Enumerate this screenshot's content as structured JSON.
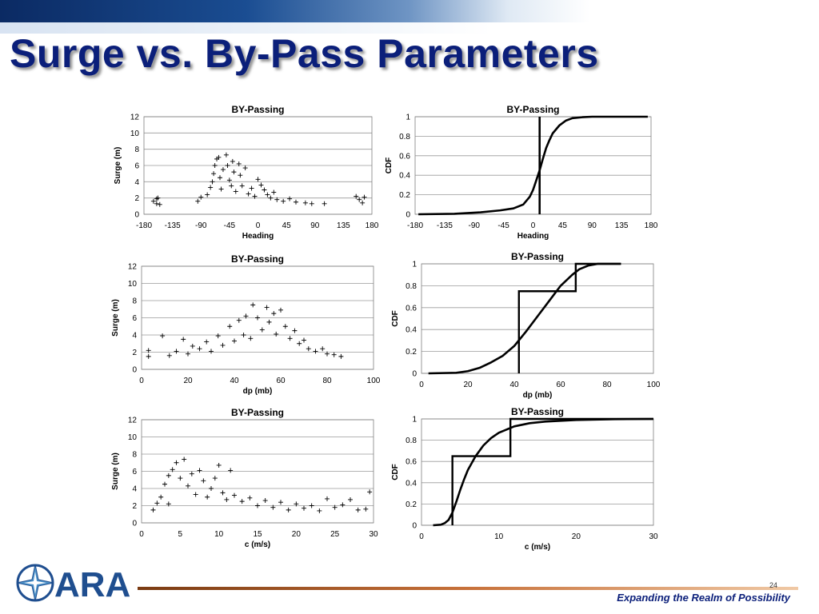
{
  "slide": {
    "title": "Surge vs. By-Pass Parameters",
    "page_number": "24",
    "tagline": "Expanding the Realm of Possibility",
    "logo_text": "ARA"
  },
  "colors": {
    "title": "#0b1f7a",
    "tagline": "#0b1f7a",
    "footer_line": "#c7713a",
    "chart_line": "#000000"
  },
  "chart_data": [
    {
      "id": "heading_scatter",
      "type": "scatter",
      "title": "BY-Passing",
      "xlabel": "Heading",
      "ylabel": "Surge (m)",
      "xlim": [
        -180,
        180
      ],
      "ylim": [
        0,
        12
      ],
      "xticks": [
        -180,
        -135,
        -90,
        -45,
        0,
        45,
        90,
        135,
        180
      ],
      "yticks": [
        0,
        2,
        4,
        6,
        8,
        10,
        12
      ],
      "grid": "horizontal",
      "marker": "+",
      "points": [
        [
          -165,
          1.6
        ],
        [
          -160,
          1.9
        ],
        [
          -158,
          2.0
        ],
        [
          -155,
          1.2
        ],
        [
          -160,
          1.3
        ],
        [
          -95,
          1.6
        ],
        [
          -90,
          2.1
        ],
        [
          -80,
          2.4
        ],
        [
          -75,
          3.3
        ],
        [
          -72,
          4.0
        ],
        [
          -70,
          5.0
        ],
        [
          -68,
          6.0
        ],
        [
          -65,
          6.8
        ],
        [
          -62,
          7.0
        ],
        [
          -60,
          4.5
        ],
        [
          -58,
          3.1
        ],
        [
          -55,
          5.5
        ],
        [
          -50,
          7.3
        ],
        [
          -48,
          6.0
        ],
        [
          -45,
          4.2
        ],
        [
          -42,
          3.5
        ],
        [
          -40,
          6.5
        ],
        [
          -38,
          5.2
        ],
        [
          -35,
          2.8
        ],
        [
          -30,
          6.2
        ],
        [
          -28,
          4.8
        ],
        [
          -25,
          3.5
        ],
        [
          -20,
          5.7
        ],
        [
          -15,
          2.5
        ],
        [
          -10,
          3.2
        ],
        [
          -5,
          2.2
        ],
        [
          0,
          4.3
        ],
        [
          5,
          3.6
        ],
        [
          10,
          3.0
        ],
        [
          15,
          2.4
        ],
        [
          20,
          2.0
        ],
        [
          25,
          2.7
        ],
        [
          30,
          1.8
        ],
        [
          40,
          1.6
        ],
        [
          50,
          1.9
        ],
        [
          60,
          1.5
        ],
        [
          75,
          1.4
        ],
        [
          85,
          1.3
        ],
        [
          105,
          1.3
        ],
        [
          155,
          2.2
        ],
        [
          160,
          1.8
        ],
        [
          165,
          1.4
        ],
        [
          168,
          2.1
        ]
      ]
    },
    {
      "id": "heading_cdf",
      "type": "line",
      "title": "BY-Passing",
      "xlabel": "Heading",
      "ylabel": "CDF",
      "xlim": [
        -180,
        180
      ],
      "ylim": [
        0,
        1
      ],
      "xticks": [
        -180,
        -135,
        -90,
        -45,
        0,
        45,
        90,
        135,
        180
      ],
      "yticks": [
        0,
        0.2,
        0.4,
        0.6,
        0.8,
        1
      ],
      "grid": "horizontal",
      "x": [
        -175,
        -120,
        -80,
        -50,
        -30,
        -15,
        -5,
        0,
        5,
        10,
        15,
        20,
        25,
        30,
        40,
        50,
        60,
        75,
        90,
        120,
        175
      ],
      "y": [
        0,
        0.005,
        0.02,
        0.04,
        0.06,
        0.1,
        0.18,
        0.25,
        0.35,
        0.45,
        0.57,
        0.68,
        0.76,
        0.83,
        0.91,
        0.96,
        0.985,
        0.995,
        1,
        1,
        1
      ],
      "vlines": [
        10
      ]
    },
    {
      "id": "dp_scatter",
      "type": "scatter",
      "title": "BY-Passing",
      "xlabel": "dp (mb)",
      "ylabel": "Surge (m)",
      "xlim": [
        0,
        100
      ],
      "ylim": [
        0,
        12
      ],
      "xticks": [
        0,
        20,
        40,
        60,
        80,
        100
      ],
      "yticks": [
        0,
        2,
        4,
        6,
        8,
        10,
        12
      ],
      "grid": "horizontal",
      "marker": "+",
      "points": [
        [
          3,
          2.2
        ],
        [
          3,
          1.5
        ],
        [
          9,
          3.9
        ],
        [
          12,
          1.6
        ],
        [
          15,
          2.1
        ],
        [
          18,
          3.5
        ],
        [
          20,
          1.8
        ],
        [
          22,
          2.7
        ],
        [
          25,
          2.4
        ],
        [
          28,
          3.2
        ],
        [
          30,
          2.1
        ],
        [
          33,
          3.9
        ],
        [
          35,
          2.8
        ],
        [
          38,
          5.0
        ],
        [
          40,
          3.3
        ],
        [
          42,
          5.7
        ],
        [
          44,
          4.0
        ],
        [
          45,
          6.2
        ],
        [
          47,
          3.6
        ],
        [
          48,
          7.5
        ],
        [
          50,
          6.0
        ],
        [
          52,
          4.6
        ],
        [
          54,
          7.2
        ],
        [
          55,
          5.5
        ],
        [
          57,
          6.5
        ],
        [
          58,
          4.1
        ],
        [
          60,
          6.9
        ],
        [
          62,
          5.0
        ],
        [
          64,
          3.6
        ],
        [
          66,
          4.5
        ],
        [
          68,
          3.0
        ],
        [
          70,
          3.4
        ],
        [
          72,
          2.4
        ],
        [
          75,
          2.1
        ],
        [
          78,
          2.4
        ],
        [
          80,
          1.8
        ],
        [
          83,
          1.7
        ],
        [
          86,
          1.5
        ]
      ]
    },
    {
      "id": "dp_cdf",
      "type": "line",
      "title": "BY-Passing",
      "xlabel": "dp (mb)",
      "ylabel": "CDF",
      "xlim": [
        0,
        100
      ],
      "ylim": [
        0,
        1
      ],
      "xticks": [
        0,
        20,
        40,
        60,
        80,
        100
      ],
      "yticks": [
        0,
        0.2,
        0.4,
        0.6,
        0.8,
        1
      ],
      "grid": "horizontal",
      "x": [
        3,
        15,
        20,
        25,
        30,
        35,
        40,
        45,
        50,
        55,
        60,
        65,
        68,
        72,
        76,
        86
      ],
      "y": [
        0,
        0.005,
        0.02,
        0.05,
        0.1,
        0.16,
        0.25,
        0.38,
        0.52,
        0.66,
        0.8,
        0.9,
        0.95,
        0.985,
        1,
        1
      ],
      "step": {
        "x": [
          42,
          42,
          66.5,
          66.5,
          86
        ],
        "y": [
          0,
          0.75,
          0.75,
          1,
          1
        ]
      }
    },
    {
      "id": "c_scatter",
      "type": "scatter",
      "title": "BY-Passing",
      "xlabel": "c (m/s)",
      "ylabel": "Surge (m)",
      "xlim": [
        0,
        30
      ],
      "ylim": [
        0,
        12
      ],
      "xticks": [
        0,
        5,
        10,
        15,
        20,
        25,
        30
      ],
      "yticks": [
        0,
        2,
        4,
        6,
        8,
        10,
        12
      ],
      "grid": "horizontal",
      "marker": "+",
      "points": [
        [
          1.5,
          1.5
        ],
        [
          2,
          2.3
        ],
        [
          2.5,
          3.0
        ],
        [
          3,
          4.5
        ],
        [
          3.5,
          5.5
        ],
        [
          3.5,
          2.2
        ],
        [
          4,
          6.2
        ],
        [
          4.5,
          7.0
        ],
        [
          5,
          5.2
        ],
        [
          5.5,
          7.4
        ],
        [
          6,
          4.3
        ],
        [
          6.5,
          5.7
        ],
        [
          7,
          3.3
        ],
        [
          7.5,
          6.1
        ],
        [
          8,
          4.9
        ],
        [
          8.5,
          3.0
        ],
        [
          9,
          4.0
        ],
        [
          9.5,
          5.2
        ],
        [
          10,
          6.7
        ],
        [
          10.5,
          3.5
        ],
        [
          11,
          2.7
        ],
        [
          11.5,
          6.1
        ],
        [
          12,
          3.2
        ],
        [
          13,
          2.5
        ],
        [
          14,
          2.9
        ],
        [
          15,
          2.0
        ],
        [
          16,
          2.6
        ],
        [
          17,
          1.8
        ],
        [
          18,
          2.4
        ],
        [
          19,
          1.5
        ],
        [
          20,
          2.2
        ],
        [
          21,
          1.7
        ],
        [
          22,
          2.0
        ],
        [
          23,
          1.4
        ],
        [
          24,
          2.8
        ],
        [
          25,
          1.8
        ],
        [
          26,
          2.1
        ],
        [
          27,
          2.7
        ],
        [
          28,
          1.5
        ],
        [
          29,
          1.6
        ],
        [
          29.5,
          3.6
        ]
      ]
    },
    {
      "id": "c_cdf",
      "type": "line",
      "title": "BY-Passing",
      "xlabel": "c (m/s)",
      "ylabel": "CDF",
      "xlim": [
        0,
        30
      ],
      "ylim": [
        0,
        1
      ],
      "xticks": [
        0,
        10,
        20,
        30
      ],
      "yticks": [
        0,
        0.2,
        0.4,
        0.6,
        0.8,
        1
      ],
      "grid": "horizontal",
      "x": [
        1.5,
        2.5,
        3,
        3.5,
        4,
        4.5,
        5,
        5.5,
        6,
        7,
        8,
        9,
        10,
        11,
        12,
        14,
        16,
        20,
        25,
        30
      ],
      "y": [
        0,
        0.005,
        0.02,
        0.05,
        0.12,
        0.22,
        0.33,
        0.43,
        0.52,
        0.65,
        0.75,
        0.82,
        0.87,
        0.9,
        0.93,
        0.96,
        0.975,
        0.99,
        0.998,
        1
      ],
      "step": {
        "x": [
          4,
          4,
          11.5,
          11.5,
          30
        ],
        "y": [
          0,
          0.65,
          0.65,
          1,
          1
        ]
      }
    }
  ]
}
